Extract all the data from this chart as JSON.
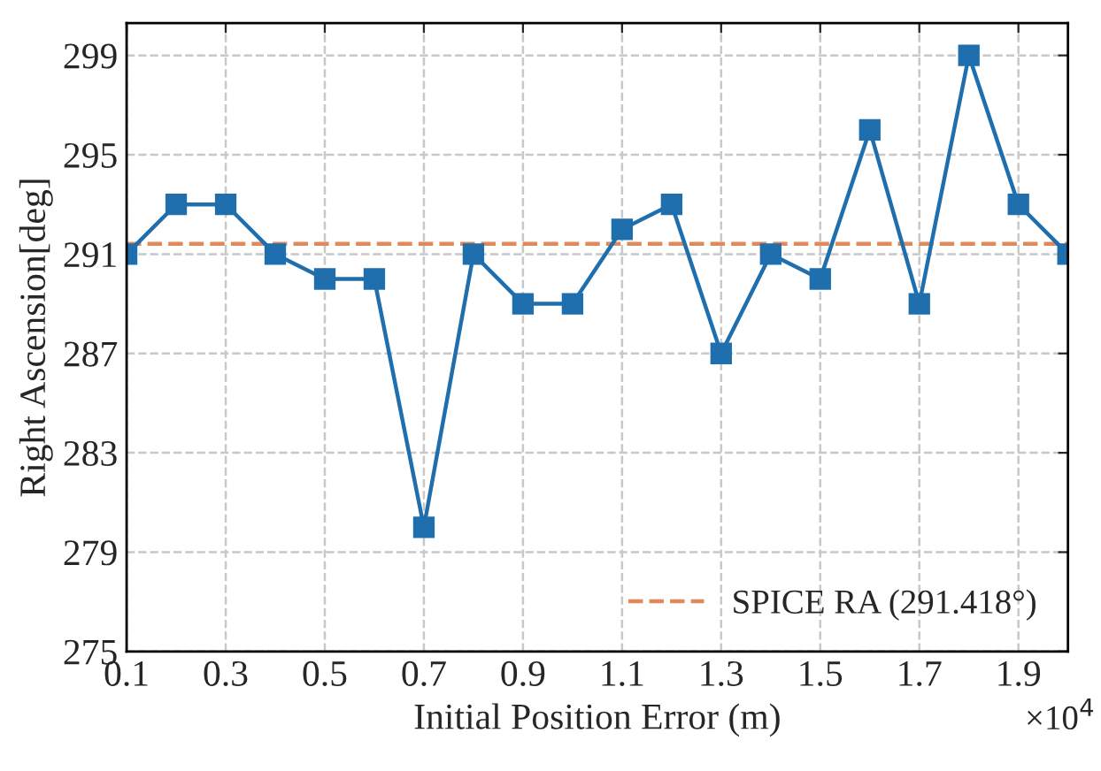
{
  "chart_data": {
    "type": "line",
    "xlabel": "Initial Position Error (m)",
    "ylabel": "Right Ascension[deg]",
    "x": [
      0.1,
      0.2,
      0.3,
      0.4,
      0.5,
      0.6,
      0.7,
      0.8,
      0.9,
      1.0,
      1.1,
      1.2,
      1.3,
      1.4,
      1.5,
      1.6,
      1.7,
      1.8,
      1.9,
      2.0
    ],
    "series": [
      {
        "color": "#1f6fae",
        "values": [
          291,
          293,
          293,
          291,
          290,
          290,
          280,
          291,
          289,
          289,
          292,
          293,
          287,
          291,
          290,
          296,
          289,
          299,
          293,
          291
        ]
      }
    ],
    "xlim": [
      0.1,
      2.0
    ],
    "xticks": [
      0.1,
      0.3,
      0.5,
      0.7,
      0.9,
      1.1,
      1.3,
      1.5,
      1.7,
      1.9
    ],
    "ylim": [
      275,
      300.3
    ],
    "yticks": [
      275,
      279,
      283,
      287,
      291,
      295,
      299
    ],
    "ref_lines": [
      {
        "axis": "y",
        "value": 291.418,
        "label": "SPICE RA (291.418°)",
        "color": "#e0895a",
        "line_style": "dashed"
      }
    ],
    "annotations": [
      "×10$^{4}$"
    ],
    "grid": true,
    "legend": "bottom right",
    "marker": "square",
    "line_style": "solid"
  }
}
